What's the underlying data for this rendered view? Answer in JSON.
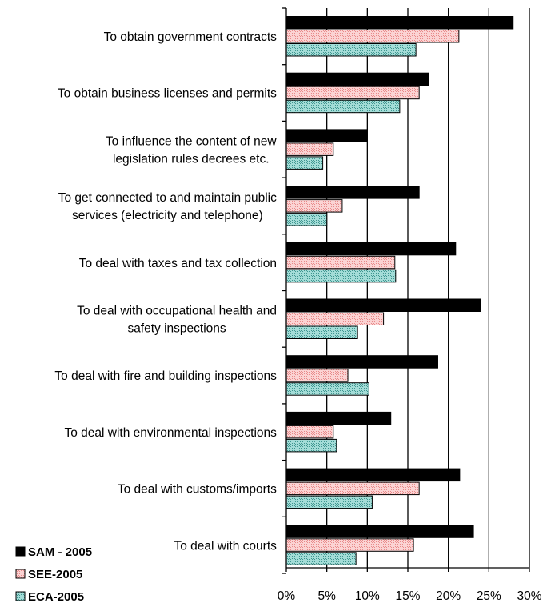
{
  "chart_data": {
    "type": "bar",
    "orientation": "horizontal",
    "title": "",
    "xlabel": "",
    "ylabel": "",
    "xlim": [
      0,
      30
    ],
    "x_ticks": [
      "0%",
      "5%",
      "10%",
      "15%",
      "20%",
      "25%",
      "30%"
    ],
    "grid": "vertical gridlines",
    "legend_position": "bottom-left",
    "categories": [
      [
        "To obtain government contracts"
      ],
      [
        "To obtain business licenses and permits"
      ],
      [
        "To influence the content of new",
        "legislation rules decrees etc."
      ],
      [
        "To get connected to and maintain public",
        "services (electricity and telephone)"
      ],
      [
        "To deal with taxes and tax collection"
      ],
      [
        "To deal with occupational health and",
        "safety inspections"
      ],
      [
        "To deal with fire and building inspections"
      ],
      [
        "To deal with environmental inspections"
      ],
      [
        "To deal with customs/imports"
      ],
      [
        "To deal with courts"
      ]
    ],
    "series": [
      {
        "name": "SAM - 2005",
        "color": "#000000",
        "values": [
          28.0,
          17.6,
          10.0,
          16.4,
          20.9,
          24.0,
          18.7,
          12.9,
          21.4,
          23.1
        ]
      },
      {
        "name": "SEE-2005",
        "color": "#f6b3b3",
        "values": [
          21.3,
          16.4,
          5.8,
          6.9,
          13.4,
          12.0,
          7.6,
          5.8,
          16.4,
          15.7
        ]
      },
      {
        "name": "ECA-2005",
        "color": "#7fc9c4",
        "values": [
          16.0,
          14.0,
          4.5,
          5.0,
          13.5,
          8.8,
          10.2,
          6.2,
          10.6,
          8.6
        ]
      }
    ]
  }
}
